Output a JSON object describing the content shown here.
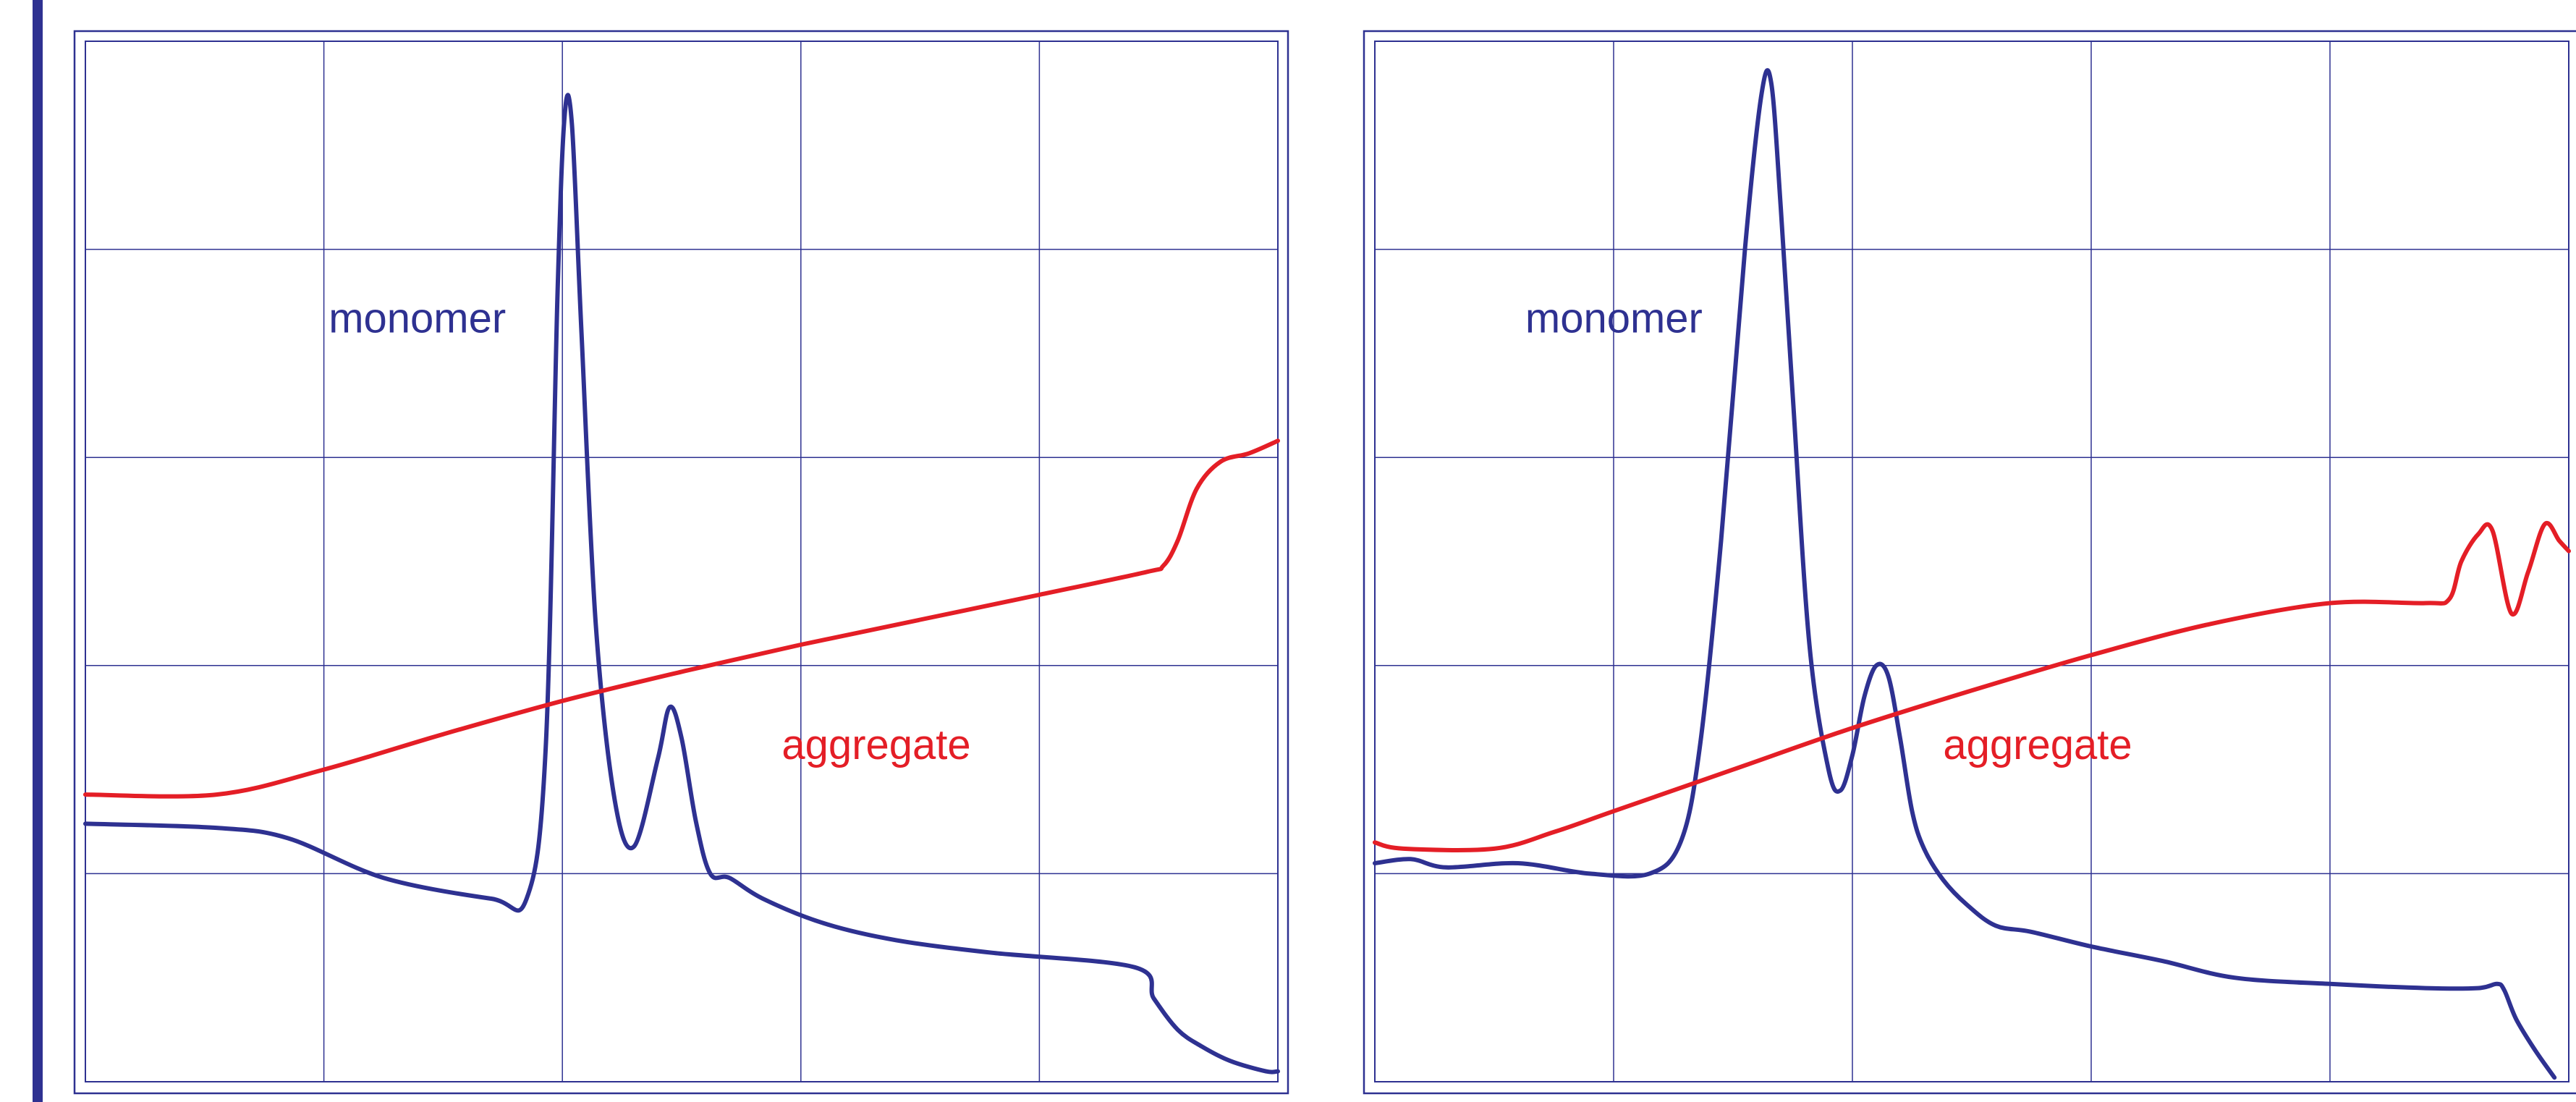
{
  "colors": {
    "frame": "#2e3191",
    "grid": "#2e3191",
    "monomer": "#2e3191",
    "aggregate": "#e41e26",
    "left_rule": "#2e3191"
  },
  "labels": {
    "monomer": "monomer",
    "aggregate": "aggregate"
  },
  "chart_data": [
    {
      "type": "line",
      "grid": true,
      "xlim": [
        0,
        5
      ],
      "ylim": [
        0,
        5
      ],
      "series": [
        {
          "name": "monomer",
          "color": "#2e3191",
          "x": [
            0,
            0.55,
            0.85,
            1.25,
            1.7,
            1.85,
            1.93,
            1.98,
            2.01,
            2.04,
            2.08,
            2.14,
            2.22,
            2.3,
            2.4,
            2.45,
            2.5,
            2.56,
            2.62,
            2.7,
            2.84,
            3.1,
            3.4,
            3.8,
            4.4,
            4.48,
            4.58,
            4.68,
            4.8,
            4.95,
            5.0
          ],
          "values": [
            1.24,
            1.22,
            1.17,
            0.98,
            0.88,
            0.88,
            1.6,
            3.8,
            4.65,
            4.6,
            3.6,
            2.2,
            1.35,
            1.13,
            1.55,
            1.8,
            1.65,
            1.25,
            1.0,
            0.98,
            0.88,
            0.76,
            0.68,
            0.62,
            0.55,
            0.4,
            0.25,
            0.17,
            0.1,
            0.05,
            0.05
          ]
        },
        {
          "name": "aggregate",
          "color": "#e41e26",
          "x": [
            0,
            0.55,
            1.0,
            1.5,
            2.0,
            2.5,
            3.0,
            3.5,
            4.0,
            4.45,
            4.52,
            4.58,
            4.66,
            4.76,
            4.88,
            5.0
          ],
          "values": [
            1.38,
            1.38,
            1.5,
            1.67,
            1.83,
            1.97,
            2.1,
            2.22,
            2.34,
            2.45,
            2.48,
            2.6,
            2.85,
            2.98,
            3.02,
            3.08
          ]
        }
      ],
      "annotations": [
        {
          "text": "monomer",
          "x": 1.02,
          "y": 3.6
        },
        {
          "text": "aggregate",
          "x": 2.92,
          "y": 1.55
        }
      ]
    },
    {
      "type": "line",
      "grid": true,
      "xlim": [
        0,
        5
      ],
      "ylim": [
        0,
        5
      ],
      "series": [
        {
          "name": "monomer",
          "color": "#2e3191",
          "x": [
            0,
            0.15,
            0.3,
            0.6,
            0.9,
            1.15,
            1.28,
            1.36,
            1.45,
            1.55,
            1.62,
            1.66,
            1.7,
            1.75,
            1.82,
            1.9,
            1.95,
            2.0,
            2.05,
            2.1,
            2.15,
            2.2,
            2.25,
            2.3,
            2.38,
            2.48,
            2.6,
            2.75,
            3.0,
            3.3,
            3.6,
            4.0,
            4.4,
            4.62,
            4.7,
            4.73,
            4.78,
            4.86,
            4.94
          ],
          "values": [
            1.05,
            1.07,
            1.03,
            1.05,
            1.0,
            1.0,
            1.15,
            1.6,
            2.6,
            4.0,
            4.75,
            4.8,
            4.2,
            3.3,
            2.1,
            1.5,
            1.4,
            1.57,
            1.85,
            2.0,
            1.95,
            1.65,
            1.3,
            1.12,
            0.97,
            0.85,
            0.75,
            0.72,
            0.65,
            0.58,
            0.5,
            0.47,
            0.45,
            0.45,
            0.47,
            0.44,
            0.3,
            0.15,
            0.02
          ]
        },
        {
          "name": "aggregate",
          "color": "#e41e26",
          "x": [
            0,
            0.12,
            0.5,
            0.75,
            1.0,
            1.5,
            2.0,
            2.5,
            3.0,
            3.5,
            4.0,
            4.4,
            4.5,
            4.55,
            4.62,
            4.68,
            4.76,
            4.83,
            4.9,
            4.96,
            5.0
          ],
          "values": [
            1.15,
            1.12,
            1.12,
            1.2,
            1.3,
            1.5,
            1.7,
            1.88,
            2.05,
            2.2,
            2.3,
            2.3,
            2.32,
            2.5,
            2.63,
            2.65,
            2.25,
            2.45,
            2.68,
            2.6,
            2.55
          ]
        }
      ],
      "annotations": [
        {
          "text": "monomer",
          "x": 0.63,
          "y": 3.6
        },
        {
          "text": "aggregate",
          "x": 2.38,
          "y": 1.55
        }
      ]
    }
  ]
}
